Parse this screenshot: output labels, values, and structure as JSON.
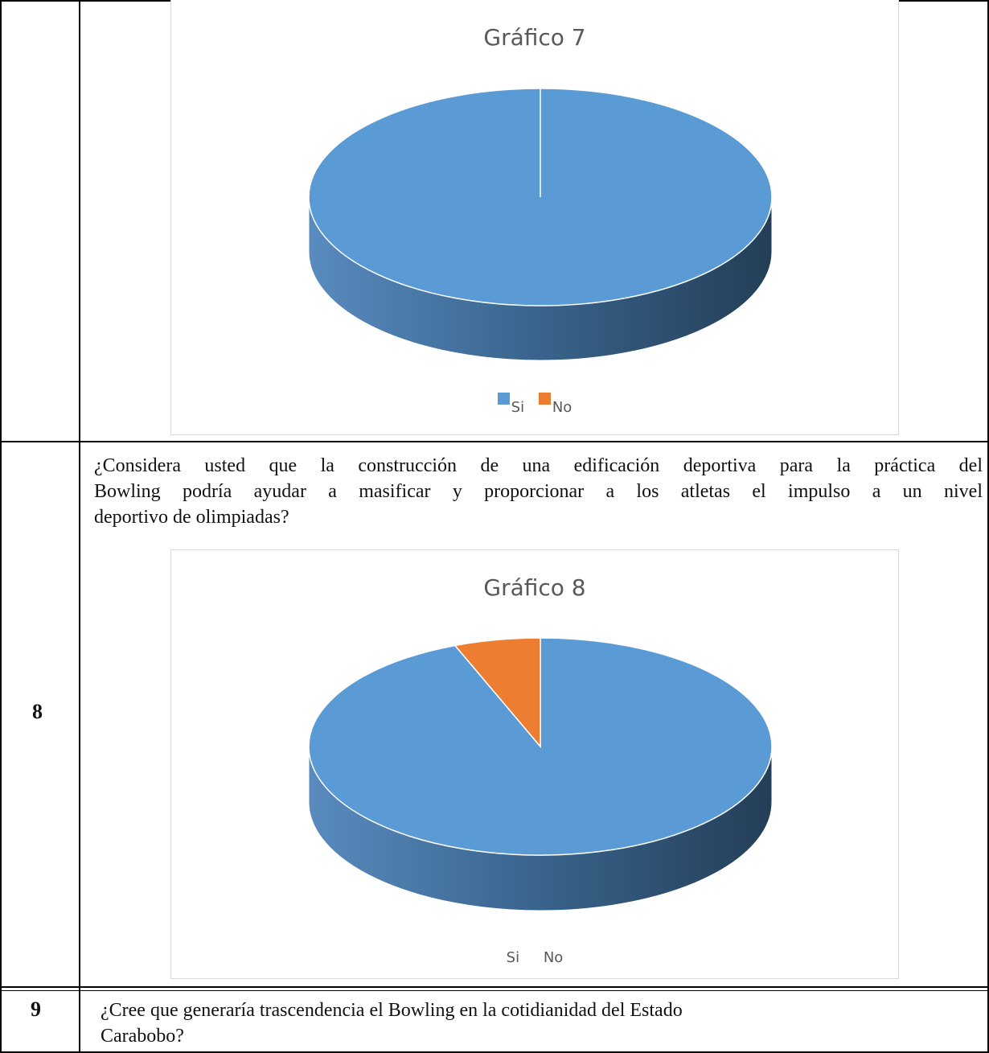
{
  "rows": [
    {
      "number": "",
      "question": ""
    },
    {
      "number": "8",
      "question_lines": [
        "¿Considera usted que la construcción de una edificación deportiva para la práctica del",
        "Bowling podría ayudar a masificar y proporcionar a los atletas el impulso a un nivel",
        "deportivo de olimpiadas?"
      ]
    },
    {
      "number": "9",
      "question_lines": [
        "¿Cree que generaría trascendencia el Bowling en la cotidianidad del Estado",
        "Carabobo?"
      ]
    }
  ],
  "colors": {
    "si": "#5b9bd5",
    "no": "#ed7d31"
  },
  "chart_data": [
    {
      "type": "pie",
      "title": "Gráfico 7",
      "categories": [
        "Si",
        "No"
      ],
      "values": [
        100,
        0
      ],
      "legend": "bottom",
      "legend_swatches": true
    },
    {
      "type": "pie",
      "title": "Gráfico 8",
      "categories": [
        "Si",
        "No"
      ],
      "values": [
        94,
        6
      ],
      "legend": "bottom",
      "legend_swatches": false
    }
  ]
}
